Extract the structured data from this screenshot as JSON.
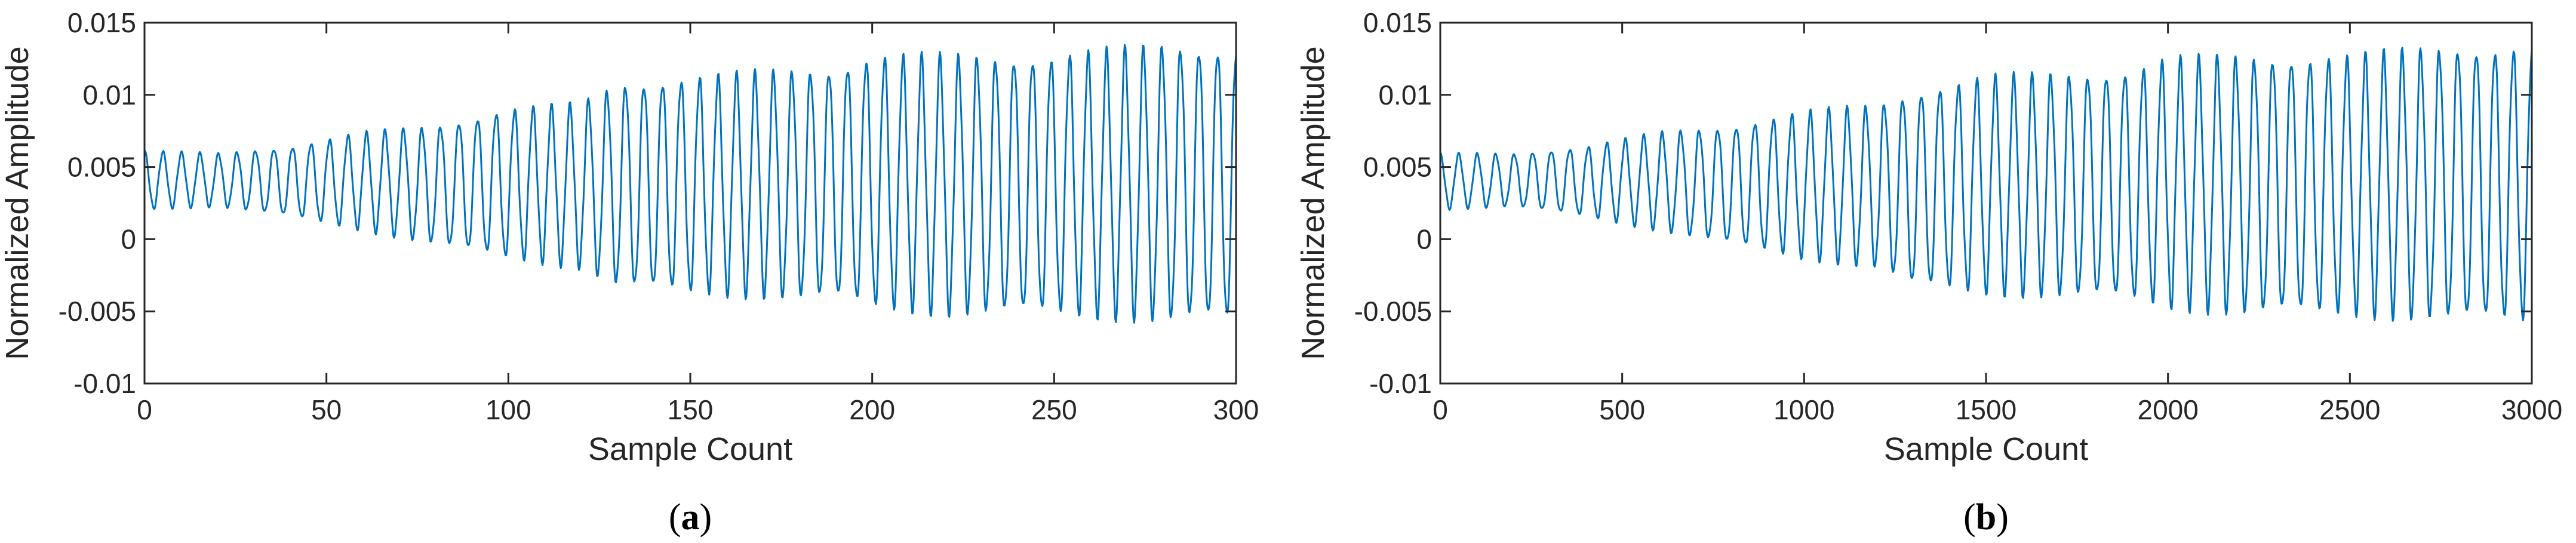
{
  "chart_data": [
    {
      "type": "line",
      "panel_label": "a",
      "xlabel": "Sample Count",
      "ylabel": "Normalized Amplitude",
      "xlim": [
        0,
        300
      ],
      "ylim": [
        -0.01,
        0.015
      ],
      "xticks": [
        0,
        50,
        100,
        150,
        200,
        250,
        300
      ],
      "xtick_labels": [
        "0",
        "50",
        "100",
        "150",
        "200",
        "250",
        "300"
      ],
      "yticks": [
        -0.01,
        -0.005,
        0,
        0.005,
        0.01,
        0.015
      ],
      "ytick_labels": [
        "-0.01",
        "-0.005",
        "0",
        "0.005",
        "0.01",
        "0.015"
      ],
      "grid": false,
      "line_color": "#0072BD",
      "signal": {
        "cycles": 59,
        "envelope_samples": [
          0,
          20,
          40,
          60,
          80,
          100,
          120,
          130,
          150,
          190,
          200,
          220,
          250,
          280,
          300
        ],
        "envelope_max": [
          0.0062,
          0.006,
          0.0065,
          0.0075,
          0.008,
          0.0092,
          0.0096,
          0.011,
          0.0115,
          0.0122,
          0.013,
          0.013,
          0.013,
          0.0138,
          0.0136
        ],
        "envelope_min": [
          0.002,
          0.0022,
          0.0015,
          0.0005,
          -0.0005,
          -0.0015,
          -0.0022,
          -0.0035,
          -0.004,
          -0.0045,
          -0.005,
          -0.0055,
          -0.0055,
          -0.006,
          -0.006
        ]
      }
    },
    {
      "type": "line",
      "panel_label": "b",
      "xlabel": "Sample Count",
      "ylabel": "Normalized Amplitude",
      "xlim": [
        0,
        3000
      ],
      "ylim": [
        -0.01,
        0.015
      ],
      "xticks": [
        0,
        500,
        1000,
        1500,
        2000,
        2500,
        3000
      ],
      "xtick_labels": [
        "0",
        "500",
        "1000",
        "1500",
        "2000",
        "2500",
        "3000"
      ],
      "yticks": [
        -0.01,
        -0.005,
        0,
        0.005,
        0.01,
        0.015
      ],
      "ytick_labels": [
        "-0.01",
        "-0.005",
        "0",
        "0.005",
        "0.01",
        "0.015"
      ],
      "grid": false,
      "line_color": "#0072BD",
      "signal": {
        "cycles": 59,
        "envelope_samples": [
          0,
          200,
          400,
          600,
          800,
          1000,
          1200,
          1300,
          1500,
          1900,
          2000,
          2200,
          2500,
          2800,
          3000
        ],
        "envelope_max": [
          0.006,
          0.006,
          0.0065,
          0.0075,
          0.008,
          0.009,
          0.0095,
          0.0105,
          0.0115,
          0.012,
          0.0128,
          0.013,
          0.013,
          0.0138,
          0.0135
        ],
        "envelope_min": [
          0.002,
          0.0022,
          0.0015,
          0.0005,
          -0.0005,
          -0.0015,
          -0.0022,
          -0.0035,
          -0.004,
          -0.0045,
          -0.005,
          -0.0055,
          -0.0055,
          -0.006,
          -0.006
        ]
      }
    }
  ]
}
